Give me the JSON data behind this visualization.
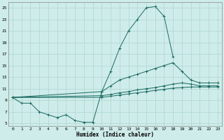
{
  "xlabel": "Humidex (Indice chaleur)",
  "bg_color": "#ceecea",
  "grid_color": "#aed4d0",
  "line_color": "#1a6b60",
  "xlim": [
    -0.5,
    23.5
  ],
  "ylim": [
    4.5,
    26
  ],
  "xticks": [
    0,
    1,
    2,
    3,
    4,
    5,
    6,
    7,
    8,
    9,
    10,
    11,
    12,
    13,
    14,
    15,
    16,
    17,
    18,
    19,
    20,
    21,
    22,
    23
  ],
  "yticks": [
    5,
    7,
    9,
    11,
    13,
    15,
    17,
    19,
    21,
    23,
    25
  ],
  "curves": [
    {
      "x": [
        0,
        1,
        2,
        3,
        4,
        5,
        6,
        7,
        8,
        9,
        10,
        11,
        12,
        13,
        14,
        15,
        16,
        17,
        18
      ],
      "y": [
        9.5,
        8.5,
        8.5,
        7.0,
        6.5,
        6.0,
        6.5,
        5.5,
        5.2,
        5.2,
        10.5,
        14.0,
        18.0,
        21.0,
        23.0,
        25.0,
        25.2,
        23.5,
        16.5
      ]
    },
    {
      "x": [
        0,
        10,
        11,
        12,
        13,
        14,
        15,
        16,
        17,
        18,
        19,
        20,
        21,
        22,
        23
      ],
      "y": [
        9.5,
        10.5,
        11.5,
        12.5,
        13.0,
        13.5,
        14.0,
        14.5,
        15.0,
        15.5,
        14.0,
        12.5,
        12.0,
        12.0,
        12.0
      ]
    },
    {
      "x": [
        0,
        10,
        11,
        12,
        13,
        14,
        15,
        16,
        17,
        18,
        19,
        20,
        21,
        22,
        23
      ],
      "y": [
        9.5,
        9.8,
        10.0,
        10.3,
        10.5,
        10.8,
        11.0,
        11.2,
        11.5,
        11.8,
        12.0,
        11.8,
        11.5,
        11.5,
        11.5
      ]
    },
    {
      "x": [
        0,
        10,
        11,
        12,
        13,
        14,
        15,
        16,
        17,
        18,
        19,
        20,
        21,
        22,
        23
      ],
      "y": [
        9.5,
        9.5,
        9.7,
        9.9,
        10.1,
        10.3,
        10.5,
        10.7,
        10.9,
        11.1,
        11.2,
        11.3,
        11.3,
        11.3,
        11.3
      ]
    }
  ]
}
